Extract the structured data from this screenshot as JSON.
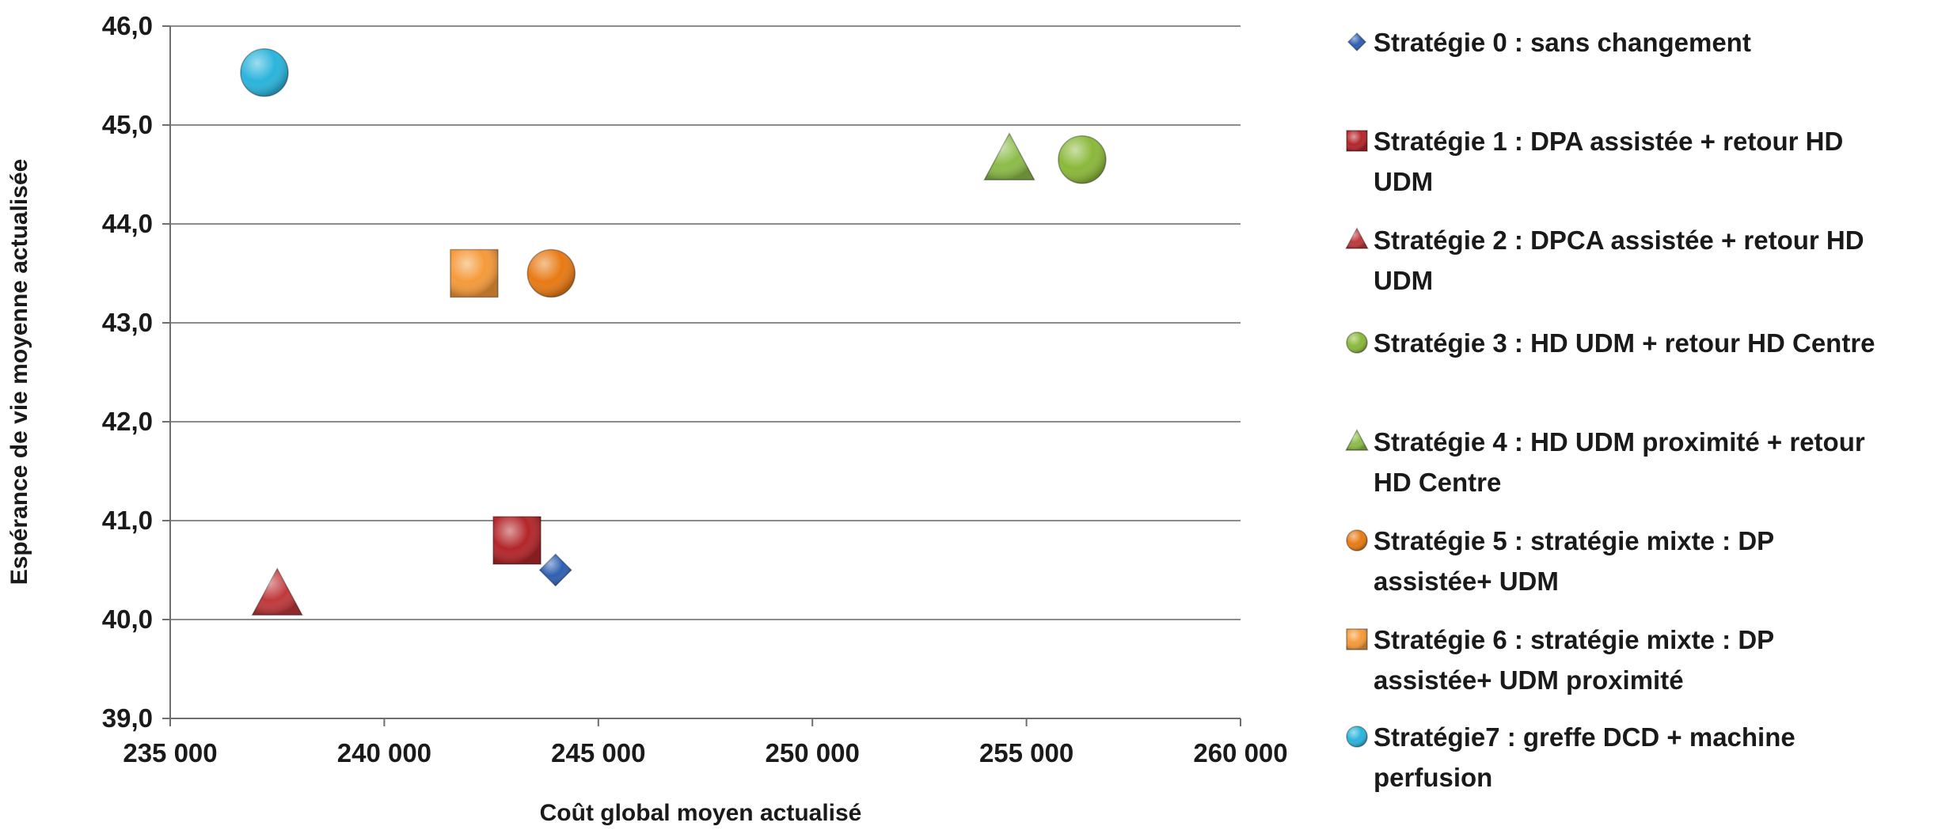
{
  "chart_data": {
    "type": "scatter",
    "title": "",
    "xlabel": "Coût global moyen actualisé",
    "ylabel": "Espérance de vie moyenne actualisée",
    "xlim": [
      235000,
      260000
    ],
    "ylim": [
      39.0,
      46.0
    ],
    "x_ticks": [
      235000,
      240000,
      245000,
      250000,
      255000,
      260000
    ],
    "x_tick_labels": [
      "235 000",
      "240 000",
      "245 000",
      "250 000",
      "255 000",
      "260 000"
    ],
    "y_ticks": [
      39,
      40,
      41,
      42,
      43,
      44,
      45,
      46
    ],
    "y_tick_labels": [
      "39,0",
      "40,0",
      "41,0",
      "42,0",
      "43,0",
      "44,0",
      "45,0",
      "46,0"
    ],
    "grid": "horizontal",
    "legend_position": "right",
    "series": [
      {
        "name": "Stratégie 0 : sans changement",
        "legend_lines": [
          "Stratégie 0 : sans changement"
        ],
        "marker": "diamond",
        "color": "#2e5fb0",
        "x": 244000,
        "y": 40.5
      },
      {
        "name": "Stratégie 1 : DPA assistée + retour HD UDM",
        "legend_lines": [
          "Stratégie 1 : DPA assistée + retour HD",
          "UDM"
        ],
        "marker": "square",
        "color": "#b3262a",
        "x": 243100,
        "y": 40.8
      },
      {
        "name": "Stratégie 2 : DPCA assistée + retour HD UDM",
        "legend_lines": [
          "Stratégie 2 : DPCA assistée + retour HD",
          "UDM"
        ],
        "marker": "triangle",
        "color": "#c0393c",
        "x": 237500,
        "y": 40.25
      },
      {
        "name": "Stratégie 3 : HD UDM + retour HD Centre",
        "legend_lines": [
          "Stratégie 3 : HD UDM + retour HD Centre"
        ],
        "marker": "circle",
        "color": "#8ab83a",
        "x": 256300,
        "y": 44.65
      },
      {
        "name": "Stratégie 4 : HD UDM proximité + retour HD Centre",
        "legend_lines": [
          "Stratégie 4 :  HD UDM proximité + retour",
          "HD Centre"
        ],
        "marker": "triangle",
        "color": "#8cbc48",
        "x": 254600,
        "y": 44.65
      },
      {
        "name": "Stratégie 5 : stratégie mixte : DP assistée+ UDM",
        "legend_lines": [
          "Stratégie  5 : stratégie mixte :  DP",
          "assistée+ UDM"
        ],
        "marker": "circle",
        "color": "#e87a14",
        "x": 243900,
        "y": 43.5
      },
      {
        "name": "Stratégie 6 : stratégie mixte : DP assistée+ UDM proximité",
        "legend_lines": [
          "Stratégie  6 : stratégie mixte :  DP",
          "assistée+ UDM proximité"
        ],
        "marker": "square",
        "color": "#f59a3a",
        "x": 242100,
        "y": 43.5
      },
      {
        "name": "Stratégie7 : greffe DCD + machine perfusion",
        "legend_lines": [
          "Stratégie7 : greffe DCD +  machine",
          "perfusion"
        ],
        "marker": "circle",
        "color": "#2ab4dc",
        "x": 237200,
        "y": 45.53
      }
    ]
  }
}
